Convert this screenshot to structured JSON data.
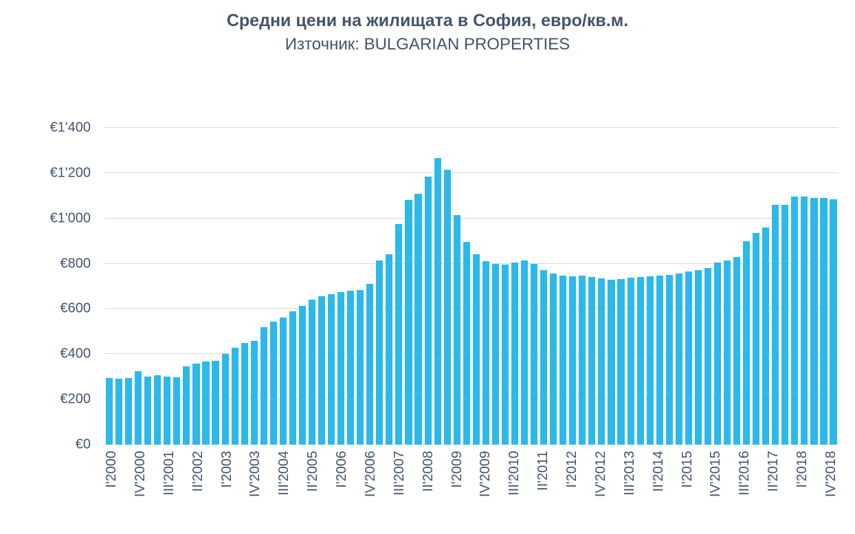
{
  "header": {
    "title": "Средни цени на жилищата в София, евро/кв.м.",
    "subtitle": "Източник: BULGARIAN PROPERTIES"
  },
  "chart_data": {
    "type": "bar",
    "title": "Средни цени на жилищата в София, евро/кв.м.",
    "subtitle": "Източник: BULGARIAN PROPERTIES",
    "xlabel": "",
    "ylabel": "",
    "ylim": [
      0,
      1400
    ],
    "grid": true,
    "legend": false,
    "x_label_every": 3,
    "ytick_values": [
      0,
      200,
      400,
      600,
      800,
      1000,
      1200,
      1400
    ],
    "ytick_labels": [
      "€0",
      "€200",
      "€400",
      "€600",
      "€800",
      "€1'000",
      "€1'200",
      "€1'400"
    ],
    "colors": {
      "bar": "#2CB9EA",
      "grid": "#D9D9D9",
      "text": "#44546A",
      "background": "#FFFFFF"
    },
    "categories": [
      "I'2000",
      "II'2000",
      "III'2000",
      "IV'2000",
      "I'2001",
      "II'2001",
      "III'2001",
      "IV'2001",
      "I'2002",
      "II'2002",
      "III'2002",
      "IV'2002",
      "I'2003",
      "II'2003",
      "III'2003",
      "IV'2003",
      "I'2004",
      "II'2004",
      "III'2004",
      "IV'2004",
      "I'2005",
      "II'2005",
      "III'2005",
      "IV'2005",
      "I'2006",
      "II'2006",
      "III'2006",
      "IV'2006",
      "I'2007",
      "II'2007",
      "III'2007",
      "IV'2007",
      "I'2008",
      "II'2008",
      "III'2008",
      "IV'2008",
      "I'2009",
      "II'2009",
      "III'2009",
      "IV'2009",
      "I'2010",
      "II'2010",
      "III'2010",
      "IV'2010",
      "I'2011",
      "II'2011",
      "III'2011",
      "IV'2011",
      "I'2012",
      "II'2012",
      "III'2012",
      "IV'2012",
      "I'2013",
      "II'2013",
      "III'2013",
      "IV'2013",
      "I'2014",
      "II'2014",
      "III'2014",
      "IV'2014",
      "I'2015",
      "II'2015",
      "III'2015",
      "IV'2015",
      "I'2016",
      "II'2016",
      "III'2016",
      "IV'2016",
      "I'2017",
      "II'2017",
      "III'2017",
      "IV'2017",
      "I'2018",
      "II'2018",
      "III'2018",
      "IV'2018"
    ],
    "values": [
      295,
      293,
      295,
      325,
      300,
      308,
      300,
      298,
      345,
      358,
      368,
      372,
      400,
      428,
      448,
      460,
      520,
      545,
      562,
      590,
      615,
      640,
      655,
      665,
      675,
      680,
      682,
      710,
      815,
      840,
      975,
      1080,
      1110,
      1185,
      1265,
      1215,
      1015,
      895,
      840,
      812,
      800,
      795,
      805,
      815,
      798,
      770,
      755,
      748,
      745,
      748,
      742,
      735,
      728,
      732,
      738,
      742,
      745,
      748,
      750,
      755,
      765,
      772,
      780,
      805,
      815,
      830,
      900,
      935,
      960,
      1060,
      1060,
      1095,
      1095,
      1090,
      1090,
      1085
    ]
  }
}
